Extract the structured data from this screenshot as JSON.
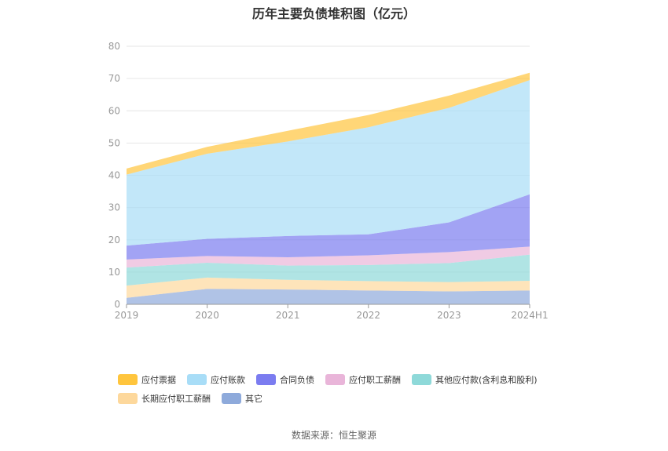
{
  "chart_data": {
    "type": "area",
    "title": "历年主要负债堆积图（亿元）",
    "categories": [
      "2019",
      "2020",
      "2021",
      "2022",
      "2023",
      "2024H1"
    ],
    "ylim": [
      0,
      80
    ],
    "yticks": [
      0,
      10,
      20,
      30,
      40,
      50,
      60,
      70,
      80
    ],
    "grid": true,
    "legend_position": "bottom",
    "stacked": true,
    "series": [
      {
        "name": "其它",
        "color": "#8eaadb",
        "values": [
          2.0,
          4.8,
          4.6,
          4.3,
          4.0,
          4.3
        ]
      },
      {
        "name": "长期应付职工薪酬",
        "color": "#fdd89c",
        "values": [
          3.8,
          3.5,
          3.0,
          2.9,
          2.9,
          3.0
        ]
      },
      {
        "name": "其他应付款(含利息和股利)",
        "color": "#8ed9d9",
        "values": [
          5.6,
          4.6,
          4.4,
          5.0,
          5.9,
          8.1
        ]
      },
      {
        "name": "应付职工薪酬",
        "color": "#e9b5d9",
        "values": [
          2.5,
          2.1,
          2.6,
          3.0,
          3.4,
          2.5
        ]
      },
      {
        "name": "合同负债",
        "color": "#7b7cf0",
        "values": [
          4.3,
          5.3,
          6.6,
          6.5,
          9.2,
          16.2
        ]
      },
      {
        "name": "应付账款",
        "color": "#a8ddf7",
        "values": [
          22.0,
          26.4,
          29.3,
          33.2,
          35.5,
          35.4
        ]
      },
      {
        "name": "应付票据",
        "color": "#ffc53d",
        "values": [
          1.9,
          2.1,
          3.3,
          3.8,
          3.8,
          2.3
        ]
      }
    ]
  },
  "legend": {
    "row1": [
      "应付票据",
      "应付账款",
      "合同负债",
      "应付职工薪酬",
      "其他应付款(含利息和股利)"
    ],
    "row2": [
      "长期应付职工薪酬",
      "其它"
    ]
  },
  "source": "数据来源：恒生聚源"
}
